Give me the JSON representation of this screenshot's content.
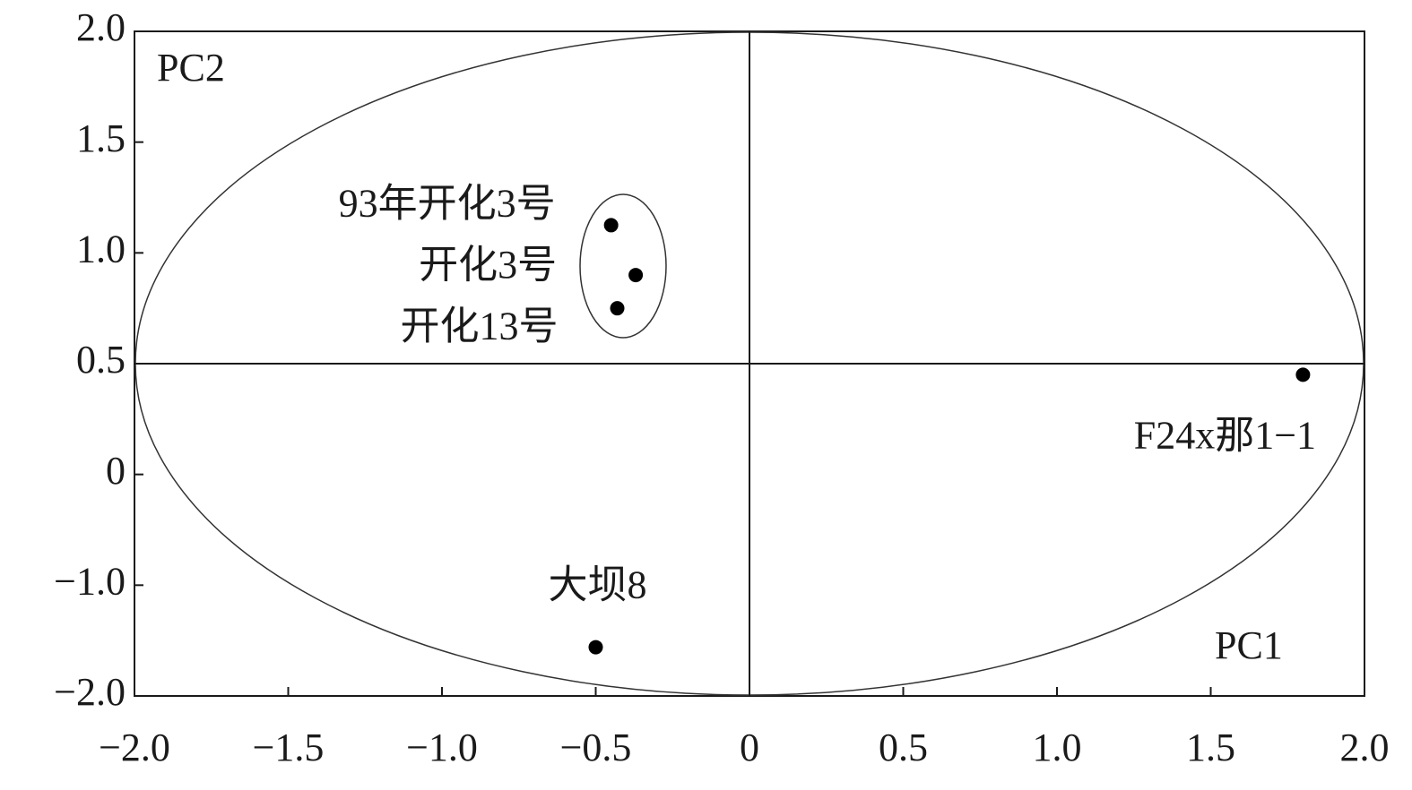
{
  "chart_data": {
    "type": "scatter",
    "x_label": "PC1",
    "y_label": "PC2",
    "labels": [
      "93年开化3号",
      "开化3号",
      "开化13号",
      "F24x那1−1",
      "大坝8"
    ],
    "x": [
      -0.45,
      -0.37,
      -0.43,
      1.8,
      -0.5
    ],
    "values": [
      1.125,
      0.9,
      0.75,
      0.45,
      -1.56
    ],
    "color": "#000000",
    "xlim": [
      -2,
      2
    ],
    "xticks": [
      {
        "value": -2,
        "label": "−2.0"
      },
      {
        "value": -1.5,
        "label": "−1.5"
      },
      {
        "value": -1,
        "label": "−1.0"
      },
      {
        "value": -0.5,
        "label": "−0.5"
      },
      0,
      0.5,
      {
        "value": 1,
        "label": "1.0"
      },
      1.5,
      {
        "value": 2,
        "label": "2.0"
      }
    ],
    "ylim": [
      -2,
      2
    ],
    "yticks": [
      {
        "value": 2,
        "label": "2.0"
      },
      1.5,
      {
        "value": 1,
        "label": "1.0"
      },
      0.5,
      0,
      {
        "value": -1,
        "label": "−1.0"
      },
      {
        "value": -2,
        "label": "−2.0"
      }
    ],
    "hline": 0.5,
    "vline": 0
  }
}
